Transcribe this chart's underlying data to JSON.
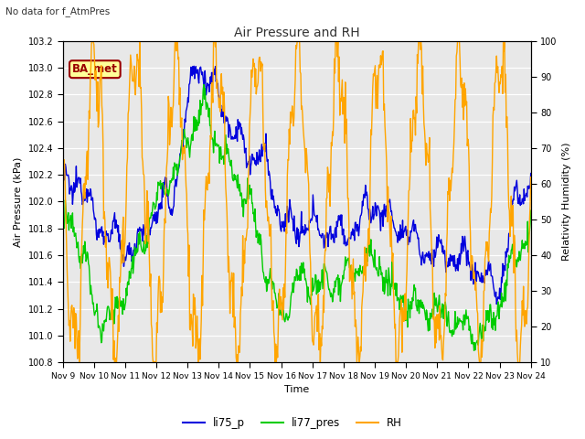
{
  "title": "Air Pressure and RH",
  "subtitle": "No data for f_AtmPres",
  "xlabel": "Time",
  "ylabel_left": "Air Pressure (kPa)",
  "ylabel_right": "Relativity Humidity (%)",
  "ylim_left": [
    100.8,
    103.2
  ],
  "ylim_right": [
    10,
    100
  ],
  "yticks_left": [
    100.8,
    101.0,
    101.2,
    101.4,
    101.6,
    101.8,
    102.0,
    102.2,
    102.4,
    102.6,
    102.8,
    103.0,
    103.2
  ],
  "yticks_right": [
    10,
    20,
    30,
    40,
    50,
    60,
    70,
    80,
    90,
    100
  ],
  "xtick_labels": [
    "Nov 9",
    "Nov 10",
    "Nov 11",
    "Nov 12",
    "Nov 13",
    "Nov 14",
    "Nov 15",
    "Nov 16",
    "Nov 17",
    "Nov 18",
    "Nov 19",
    "Nov 20",
    "Nov 21",
    "Nov 22",
    "Nov 23",
    "Nov 24"
  ],
  "legend_labels": [
    "li75_p",
    "li77_pres",
    "RH"
  ],
  "line_colors": [
    "#0000dd",
    "#00cc00",
    "#ffa500"
  ],
  "bg_color": "#e8e8e8",
  "annotation_box_text": "BA_met",
  "annotation_box_color": "#ffff99",
  "annotation_box_border_color": "#990000",
  "title_color": "#333333",
  "subtitle_color": "#333333",
  "figsize": [
    6.4,
    4.8
  ],
  "dpi": 100
}
